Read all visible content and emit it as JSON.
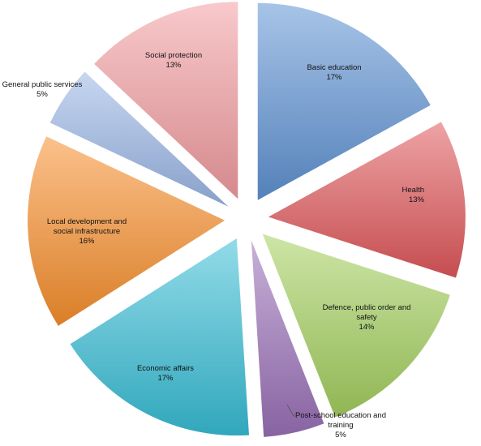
{
  "chart_data": {
    "type": "pie",
    "title": "",
    "slices": [
      {
        "name": "Basic education",
        "value": 17,
        "label": "17%",
        "color": "#5f93d3"
      },
      {
        "name": "Health",
        "value": 13,
        "label": "13%",
        "color": "#e0585b"
      },
      {
        "name": "Defence, public order and safety",
        "value": 14,
        "label": "14%",
        "color": "#a4cf5e"
      },
      {
        "name": "Post-school education and training",
        "value": 5,
        "label": "5%",
        "color": "#9a70b8"
      },
      {
        "name": "Economic affairs",
        "value": 17,
        "label": "17%",
        "color": "#38bed6"
      },
      {
        "name": "Local development and social infrastructure",
        "value": 16,
        "label": "16%",
        "color": "#f88f2c"
      },
      {
        "name": "General public services",
        "value": 5,
        "label": "5%",
        "color": "#9ab6e6"
      },
      {
        "name": "Social protection",
        "value": 13,
        "label": "13%",
        "color": "#f29ca0"
      }
    ],
    "legend": "none",
    "data_labels": "category name and percentage"
  }
}
